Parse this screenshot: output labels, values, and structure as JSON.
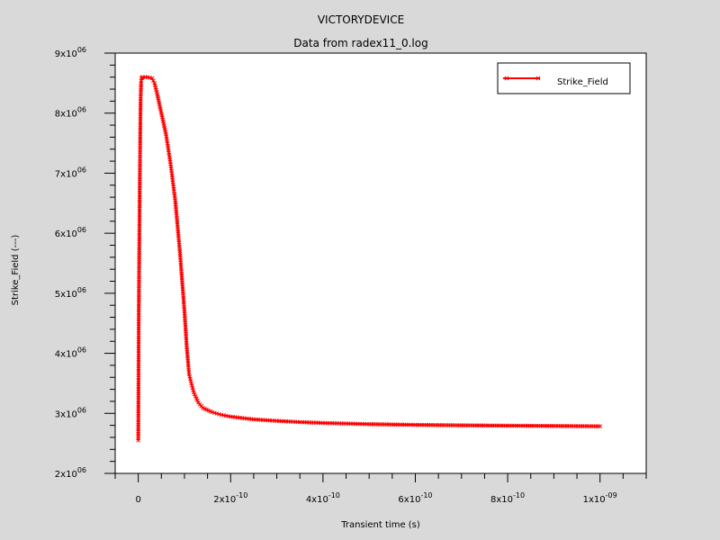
{
  "chart_data": {
    "type": "line",
    "title": "VICTORYDEVICE",
    "subtitle": "Data from radex11_0.log",
    "xlabel": "Transient time (s)",
    "ylabel": "Strike_Field (---)",
    "xlim": [
      -5e-11,
      1.1e-09
    ],
    "ylim": [
      2000000,
      9000000
    ],
    "x_ticks": [
      {
        "value": 0,
        "label": "0"
      },
      {
        "value": 2e-10,
        "mant": "2x10",
        "exp": "-10"
      },
      {
        "value": 4e-10,
        "mant": "4x10",
        "exp": "-10"
      },
      {
        "value": 6e-10,
        "mant": "6x10",
        "exp": "-10"
      },
      {
        "value": 8e-10,
        "mant": "8x10",
        "exp": "-10"
      },
      {
        "value": 1e-09,
        "mant": "1x10",
        "exp": "-09"
      }
    ],
    "y_ticks": [
      {
        "value": 2000000,
        "mant": "2x10",
        "exp": "06"
      },
      {
        "value": 3000000,
        "mant": "3x10",
        "exp": "06"
      },
      {
        "value": 4000000,
        "mant": "4x10",
        "exp": "06"
      },
      {
        "value": 5000000,
        "mant": "5x10",
        "exp": "06"
      },
      {
        "value": 6000000,
        "mant": "6x10",
        "exp": "06"
      },
      {
        "value": 7000000,
        "mant": "7x10",
        "exp": "06"
      },
      {
        "value": 8000000,
        "mant": "8x10",
        "exp": "06"
      },
      {
        "value": 9000000,
        "mant": "9x10",
        "exp": "06"
      }
    ],
    "legend_position": "top-right",
    "series": [
      {
        "name": "Strike_Field",
        "color": "#ff0000",
        "marker": "x",
        "x": [
          0,
          1e-12,
          2e-12,
          3e-12,
          4e-12,
          5e-12,
          6e-12,
          7e-12,
          8e-12,
          1e-11,
          1.5e-11,
          2e-11,
          3e-11,
          3.5e-11,
          4e-11,
          5e-11,
          6e-11,
          7e-11,
          8e-11,
          9e-11,
          1e-10,
          1.05e-10,
          1.1e-10,
          1.2e-10,
          1.3e-10,
          1.4e-10,
          1.6e-10,
          1.8e-10,
          2e-10,
          2.5e-10,
          3e-10,
          3.5e-10,
          4e-10,
          4.5e-10,
          5e-10,
          6e-10,
          7e-10,
          8e-10,
          9e-10,
          1e-09
        ],
        "y": [
          2550000,
          4600000,
          5600000,
          6600000,
          7500000,
          8200000,
          8500000,
          8580000,
          8590000,
          8600000,
          8600000,
          8600000,
          8580000,
          8500000,
          8350000,
          8000000,
          7650000,
          7150000,
          6550000,
          5700000,
          4700000,
          4100000,
          3650000,
          3350000,
          3180000,
          3090000,
          3020000,
          2975000,
          2945000,
          2900000,
          2875000,
          2855000,
          2840000,
          2830000,
          2820000,
          2808000,
          2800000,
          2795000,
          2790000,
          2785000
        ]
      }
    ]
  }
}
